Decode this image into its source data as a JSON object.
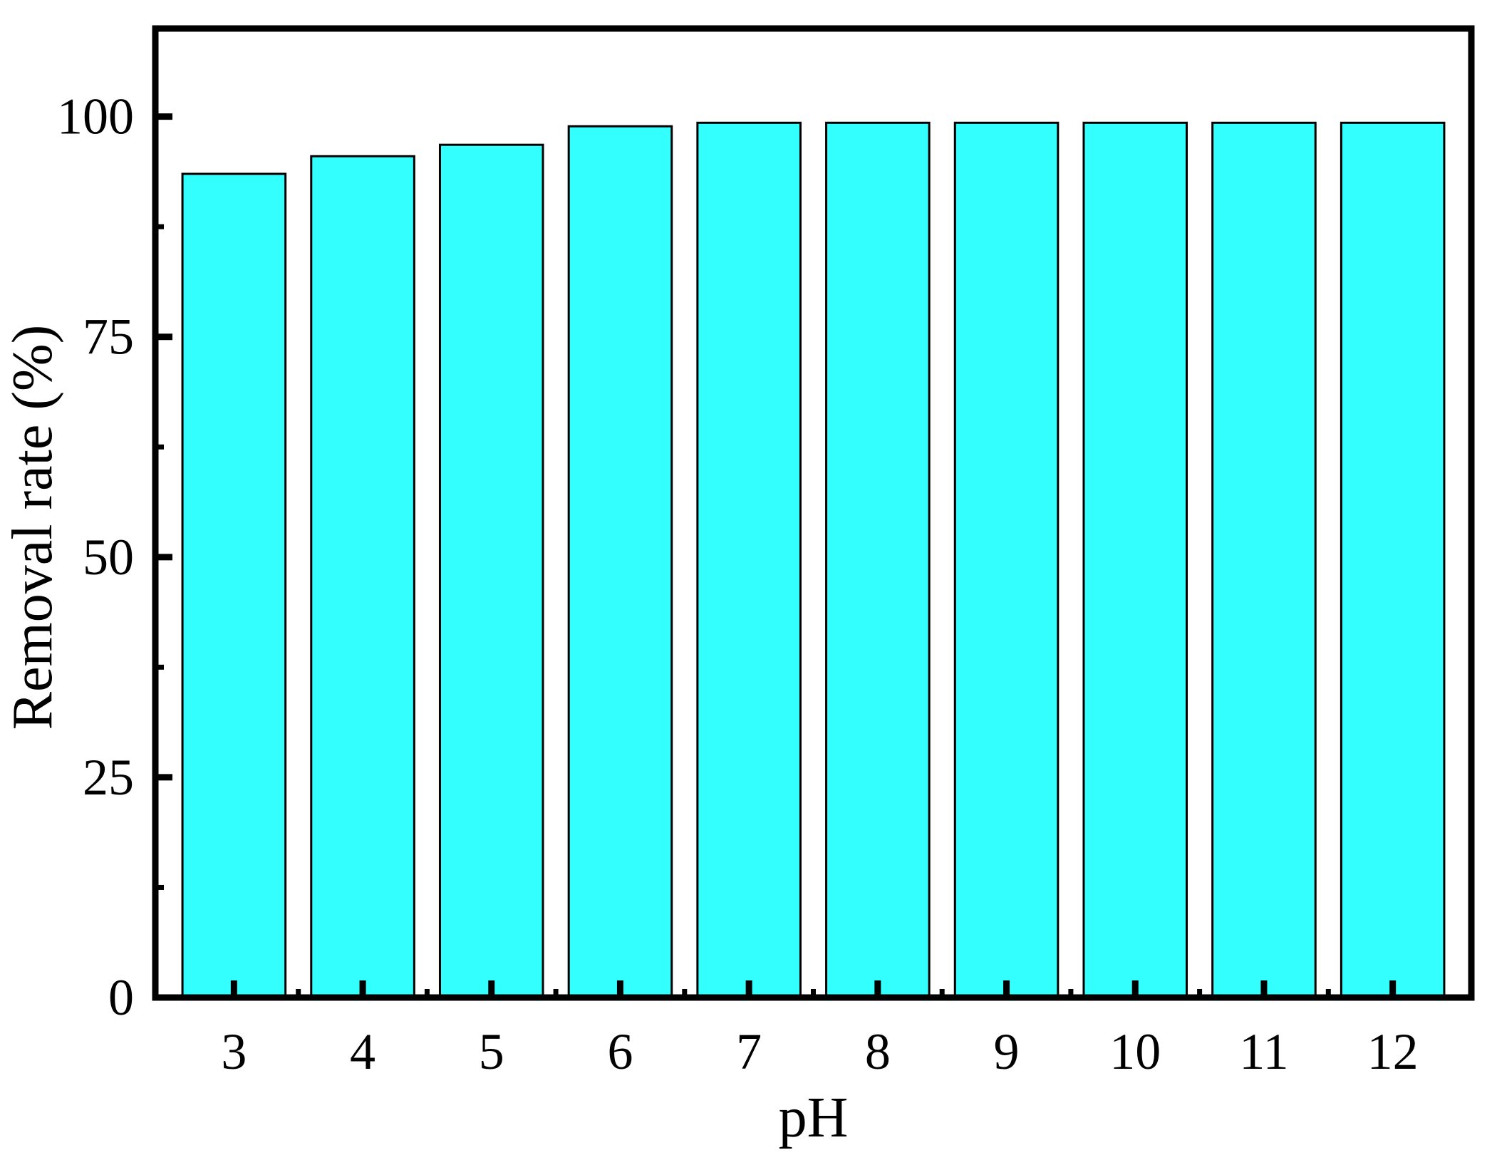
{
  "chart_data": {
    "type": "bar",
    "title": "",
    "xlabel": "pH",
    "ylabel": "Removal rate (%)",
    "categories": [
      "3",
      "4",
      "5",
      "6",
      "7",
      "8",
      "9",
      "10",
      "11",
      "12"
    ],
    "values": [
      93.5,
      95.5,
      96.8,
      98.9,
      99.3,
      99.3,
      99.3,
      99.3,
      99.3,
      99.3
    ],
    "ylim": [
      0,
      110
    ],
    "yticks": [
      0,
      25,
      50,
      75,
      100
    ],
    "yticks_labels": [
      "0",
      "25",
      "50",
      "75",
      "100"
    ],
    "grid": false,
    "legend": "none",
    "colors": {
      "bar_fill": "#33ffff",
      "bar_stroke": "#000000",
      "axis": "#000000"
    }
  }
}
